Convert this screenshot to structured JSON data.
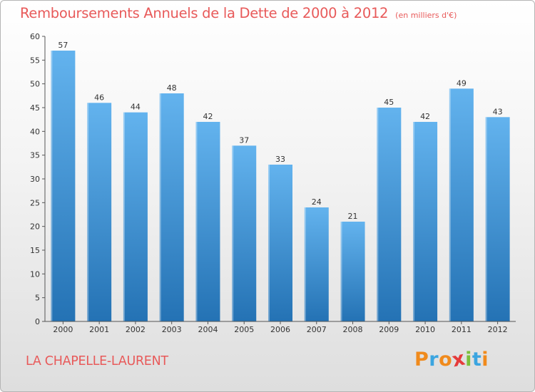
{
  "header": {
    "title": "Remboursements Annuels de la Dette de 2000 à 2012",
    "subtitle": "(en milliers d'€)"
  },
  "footer": {
    "commune": "LA CHAPELLE-LAURENT",
    "logo_letters": [
      "P",
      "r",
      "o",
      "x",
      "i",
      "t",
      "i"
    ],
    "logo_text": "Proxiti"
  },
  "colors": {
    "title": "#e85a5a",
    "bar_top": "#63b3ee",
    "bar_bottom": "#2472b4",
    "logo_letters": [
      "#f08a1c",
      "#3ba5e0",
      "#f08a1c",
      "#e53b3b",
      "#7bbf3a",
      "#3ba5e0",
      "#f08a1c"
    ]
  },
  "chart_data": {
    "type": "bar",
    "title": "Remboursements Annuels de la Dette de 2000 à 2012",
    "xlabel": "",
    "ylabel": "",
    "categories": [
      "2000",
      "2001",
      "2002",
      "2003",
      "2004",
      "2005",
      "2006",
      "2007",
      "2008",
      "2009",
      "2010",
      "2011",
      "2012"
    ],
    "values": [
      57,
      46,
      44,
      48,
      42,
      37,
      33,
      24,
      21,
      45,
      42,
      49,
      43
    ],
    "ylim": [
      0,
      60
    ],
    "yticks": [
      0,
      5,
      10,
      15,
      20,
      25,
      30,
      35,
      40,
      45,
      50,
      55,
      60
    ],
    "grid": false,
    "data_labels": true
  }
}
